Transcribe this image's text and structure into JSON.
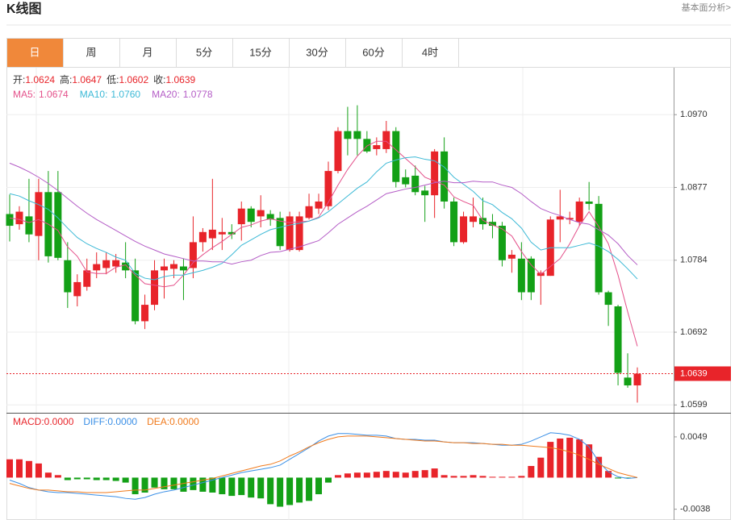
{
  "header": {
    "title": "K线图",
    "link": "基本面分析>"
  },
  "tabs": [
    "日",
    "周",
    "月",
    "5分",
    "15分",
    "30分",
    "60分",
    "4时"
  ],
  "active_tab": 0,
  "chart_data": [
    {
      "type": "candlestick",
      "up_color": "#e8242a",
      "down_color": "#13a016",
      "ohlc_legend": [
        {
          "label": "开:",
          "value": 1.0624
        },
        {
          "label": "高:",
          "value": 1.0647
        },
        {
          "label": "低:",
          "value": 1.0602
        },
        {
          "label": "收:",
          "value": 1.0639
        }
      ],
      "open": [
        1.0843,
        1.083,
        1.084,
        1.0815,
        1.0871,
        1.0871,
        1.0784,
        1.0738,
        1.075,
        1.0771,
        1.0774,
        1.0776,
        1.0781,
        1.0771,
        1.0706,
        1.0727,
        1.0771,
        1.0773,
        1.0776,
        1.0774,
        1.0807,
        1.0812,
        1.0817,
        1.082,
        1.083,
        1.085,
        1.084,
        1.0843,
        1.0838,
        1.0797,
        1.0797,
        1.0838,
        1.085,
        1.0853,
        1.0898,
        1.0949,
        1.0949,
        1.0939,
        1.0926,
        1.0926,
        1.0949,
        1.089,
        1.0892,
        1.0873,
        1.0867,
        1.0923,
        1.0859,
        1.0807,
        1.0833,
        1.0838,
        1.0833,
        1.0828,
        1.0786,
        1.0786,
        1.0786,
        1.0764,
        1.0764,
        1.0836,
        1.0836,
        1.0833,
        1.0859,
        1.0856,
        1.0743,
        1.0725,
        1.0634,
        1.0624
      ],
      "high": [
        1.0868,
        1.0853,
        1.0888,
        1.0888,
        1.0898,
        1.0898,
        1.0807,
        1.0766,
        1.0786,
        1.0794,
        1.0794,
        1.0792,
        1.0807,
        1.0786,
        1.074,
        1.0784,
        1.0786,
        1.0784,
        1.0786,
        1.084,
        1.0825,
        1.0888,
        1.0838,
        1.083,
        1.0859,
        1.0853,
        1.0867,
        1.0848,
        1.0846,
        1.0846,
        1.0846,
        1.0869,
        1.0869,
        1.091,
        1.0954,
        1.098,
        1.0982,
        1.0949,
        1.0941,
        1.0962,
        1.0954,
        1.09,
        1.0905,
        1.0879,
        1.0926,
        1.0941,
        1.0864,
        1.0846,
        1.0864,
        1.0864,
        1.0843,
        1.0833,
        1.0797,
        1.0807,
        1.0789,
        1.0771,
        1.084,
        1.0874,
        1.0846,
        1.0864,
        1.0884,
        1.0866,
        1.0745,
        1.0727,
        1.0665,
        1.0647
      ],
      "low": [
        1.0808,
        1.0823,
        1.0807,
        1.0784,
        1.0781,
        1.0784,
        1.0723,
        1.0725,
        1.0745,
        1.0761,
        1.0766,
        1.0768,
        1.0761,
        1.0702,
        1.0696,
        1.072,
        1.0735,
        1.0761,
        1.0733,
        1.0761,
        1.0795,
        1.0797,
        1.0797,
        1.0811,
        1.0809,
        1.0826,
        1.0826,
        1.0828,
        1.0797,
        1.0795,
        1.0795,
        1.0836,
        1.0843,
        1.0848,
        1.0895,
        1.0918,
        1.0918,
        1.0921,
        1.0918,
        1.0921,
        1.0877,
        1.0877,
        1.0867,
        1.0833,
        1.0838,
        1.085,
        1.0802,
        1.0805,
        1.0826,
        1.0823,
        1.0812,
        1.0776,
        1.0768,
        1.0733,
        1.0733,
        1.0727,
        1.0764,
        1.0807,
        1.083,
        1.0828,
        1.0848,
        1.074,
        1.07,
        1.0624,
        1.0621,
        1.0602
      ],
      "close": [
        1.0828,
        1.0846,
        1.0817,
        1.0871,
        1.0789,
        1.0787,
        1.0743,
        1.0756,
        1.0771,
        1.0779,
        1.0784,
        1.0784,
        1.0771,
        1.0706,
        1.0727,
        1.0771,
        1.0776,
        1.0779,
        1.0771,
        1.0807,
        1.082,
        1.0823,
        1.082,
        1.0817,
        1.085,
        1.0833,
        1.0848,
        1.0836,
        1.0802,
        1.084,
        1.084,
        1.0853,
        1.0859,
        1.0898,
        1.0949,
        1.0939,
        1.0939,
        1.0923,
        1.0931,
        1.0949,
        1.0884,
        1.0881,
        1.0871,
        1.0867,
        1.0923,
        1.0859,
        1.0807,
        1.084,
        1.084,
        1.083,
        1.0828,
        1.0784,
        1.0791,
        1.0743,
        1.0743,
        1.0768,
        1.0836,
        1.084,
        1.0838,
        1.0859,
        1.0856,
        1.0743,
        1.0727,
        1.064,
        1.0624,
        1.0639
      ],
      "series": [
        {
          "label": "MA5:",
          "last": 1.0674,
          "color": "#e4508a",
          "values": [
            1.0838,
            1.0836,
            1.0832,
            1.0836,
            1.083,
            1.0822,
            1.0801,
            1.0789,
            1.0769,
            1.0767,
            1.0767,
            1.0775,
            1.0778,
            1.0765,
            1.0754,
            1.0752,
            1.075,
            1.0752,
            1.0765,
            1.0781,
            1.0791,
            1.08,
            1.0808,
            1.0817,
            1.0826,
            1.0829,
            1.0834,
            1.0837,
            1.0834,
            1.0832,
            1.0833,
            1.0834,
            1.0839,
            1.0858,
            1.088,
            1.09,
            1.0917,
            1.093,
            1.0936,
            1.0936,
            1.0925,
            1.0914,
            1.0903,
            1.089,
            1.0885,
            1.088,
            1.0865,
            1.0859,
            1.0854,
            1.0835,
            1.0829,
            1.0824,
            1.0815,
            1.0795,
            1.0778,
            1.0766,
            1.0776,
            1.0786,
            1.0805,
            1.0828,
            1.0846,
            1.0827,
            1.0805,
            1.0765,
            1.0718,
            1.0674
          ]
        },
        {
          "label": "MA10:",
          "last": 1.076,
          "last_label": "1.0760",
          "color": "#3cb9d6",
          "values": [
            1.0869,
            1.0866,
            1.086,
            1.0855,
            1.0849,
            1.0838,
            1.0825,
            1.0813,
            1.0805,
            1.0799,
            1.0794,
            1.0788,
            1.0784,
            1.0767,
            1.0761,
            1.0759,
            1.0763,
            1.0765,
            1.0765,
            1.0768,
            1.0771,
            1.0775,
            1.078,
            1.0791,
            1.0803,
            1.081,
            1.0817,
            1.0823,
            1.0826,
            1.0829,
            1.0831,
            1.0834,
            1.0838,
            1.0846,
            1.0856,
            1.0866,
            1.0876,
            1.0884,
            1.0897,
            1.0908,
            1.0912,
            1.0915,
            1.0916,
            1.0913,
            1.0911,
            1.0903,
            1.089,
            1.0881,
            1.0872,
            1.086,
            1.0855,
            1.0845,
            1.0837,
            1.0825,
            1.0807,
            1.0797,
            1.08,
            1.08,
            1.08,
            1.0803,
            1.0806,
            1.0802,
            1.0795,
            1.0785,
            1.0773,
            1.076
          ]
        },
        {
          "label": "MA20:",
          "last": 1.0778,
          "color": "#b45cc6",
          "values": [
            1.0908,
            1.0903,
            1.0897,
            1.089,
            1.0882,
            1.0873,
            1.0863,
            1.0853,
            1.0844,
            1.0836,
            1.0829,
            1.0822,
            1.0815,
            1.0808,
            1.0802,
            1.0797,
            1.0792,
            1.0789,
            1.0786,
            1.0783,
            1.0783,
            1.0782,
            1.0782,
            1.0779,
            1.0782,
            1.0784,
            1.079,
            1.0794,
            1.0795,
            1.0798,
            1.0801,
            1.0805,
            1.0809,
            1.0819,
            1.083,
            1.0838,
            1.0846,
            1.0853,
            1.0861,
            1.0869,
            1.0872,
            1.0875,
            1.0877,
            1.088,
            1.0883,
            1.0885,
            1.0883,
            1.0883,
            1.0885,
            1.0884,
            1.0884,
            1.088,
            1.0877,
            1.0869,
            1.0859,
            1.085,
            1.0845,
            1.0841,
            1.0836,
            1.0832,
            1.083,
            1.0823,
            1.0816,
            1.0805,
            1.079,
            1.0778
          ]
        }
      ],
      "last_price": 1.0639,
      "ylim": [
        1.0589,
        1.103
      ],
      "yticks": [
        {
          "value": 1.097,
          "label": "1.0970"
        },
        1.0877,
        1.0784,
        1.0692,
        1.0599
      ],
      "grid": true
    },
    {
      "type": "macd",
      "histogram": {
        "label": "MACD:",
        "last": 0,
        "last_label": "0.0000",
        "color": "#e8242a",
        "up_color": "#e8242a",
        "down_color": "#13a016",
        "values": [
          0.0022,
          0.0022,
          0.002,
          0.0017,
          0.0006,
          0.0003,
          -0.0003,
          -0.0002,
          -0.0002,
          -0.0003,
          -0.0003,
          -0.0004,
          -0.0006,
          -0.002,
          -0.0018,
          -0.0012,
          -0.0014,
          -0.0014,
          -0.0017,
          -0.0015,
          -0.0017,
          -0.0018,
          -0.002,
          -0.0022,
          -0.0021,
          -0.0024,
          -0.0025,
          -0.0032,
          -0.0035,
          -0.0033,
          -0.003,
          -0.0028,
          -0.002,
          -0.0006,
          0.0003,
          0.0005,
          0.0006,
          0.0006,
          0.0007,
          0.0008,
          0.0007,
          0.0006,
          0.0008,
          0.0009,
          0.0011,
          0.0003,
          0.0002,
          0.0002,
          0.0003,
          0.0002,
          0.0001,
          0.0001,
          0.0001,
          0.0002,
          0.0014,
          0.0024,
          0.0043,
          0.0047,
          0.0048,
          0.0046,
          0.004,
          0.0025,
          0.0008,
          -0.0001,
          -0.0001,
          0
        ]
      },
      "series": [
        {
          "label": "DIFF:",
          "last": 0,
          "last_label": "0.0000",
          "color": "#3a8fe6",
          "values": [
            -0.0003,
            -0.0007,
            -0.0012,
            -0.0015,
            -0.0017,
            -0.0018,
            -0.0018,
            -0.0019,
            -0.002,
            -0.0021,
            -0.0022,
            -0.0023,
            -0.0025,
            -0.0026,
            -0.0024,
            -0.002,
            -0.0017,
            -0.0015,
            -0.0012,
            -0.0009,
            -0.0006,
            -0.0003,
            0,
            0.0003,
            0.0006,
            0.0008,
            0.001,
            0.0012,
            0.0015,
            0.0022,
            0.0029,
            0.0036,
            0.0044,
            0.005,
            0.0053,
            0.0053,
            0.0052,
            0.0051,
            0.0051,
            0.005,
            0.0047,
            0.0046,
            0.0046,
            0.0045,
            0.0045,
            0.0043,
            0.0042,
            0.0042,
            0.0042,
            0.0041,
            0.004,
            0.0039,
            0.0039,
            0.004,
            0.0044,
            0.0049,
            0.0054,
            0.0053,
            0.0051,
            0.0046,
            0.0037,
            0.0019,
            0.0007,
            0.0001,
            -0.0001,
            0
          ]
        },
        {
          "label": "DEA:",
          "last": 0,
          "last_label": "0.0000",
          "color": "#f07a1c",
          "values": [
            -0.0007,
            -0.001,
            -0.0013,
            -0.0015,
            -0.0015,
            -0.0016,
            -0.0017,
            -0.0017,
            -0.0018,
            -0.0018,
            -0.0018,
            -0.0017,
            -0.0016,
            -0.0015,
            -0.0015,
            -0.0013,
            -0.0011,
            -0.0009,
            -0.0007,
            -0.0005,
            -0.0003,
            -0.0001,
            0.0002,
            0.0005,
            0.0008,
            0.0011,
            0.0014,
            0.0016,
            0.002,
            0.0026,
            0.0031,
            0.0037,
            0.0042,
            0.0046,
            0.0049,
            0.005,
            0.005,
            0.005,
            0.0049,
            0.0048,
            0.0047,
            0.0046,
            0.0045,
            0.0044,
            0.0044,
            0.0043,
            0.0042,
            0.0042,
            0.0041,
            0.0041,
            0.004,
            0.004,
            0.0039,
            0.0039,
            0.0038,
            0.0037,
            0.0036,
            0.0034,
            0.0031,
            0.0027,
            0.0022,
            0.0016,
            0.0011,
            0.0006,
            0.0003,
            0
          ]
        }
      ],
      "ylim": [
        -0.0051,
        0.0078
      ],
      "yticks": [
        0.0049,
        -0.0038
      ]
    }
  ]
}
